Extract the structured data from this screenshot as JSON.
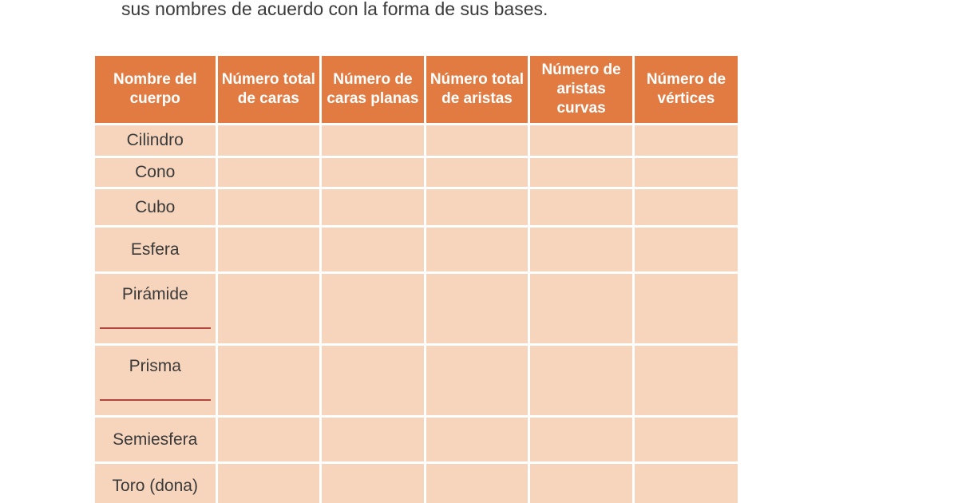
{
  "intro_text": "sus nombres de acuerdo con la forma de sus bases.",
  "table": {
    "headers": [
      "Nombre del cuerpo",
      "Número total de caras",
      "Número de caras planas",
      "Número total de aristas",
      "Número de aristas curvas",
      "Número de vértices"
    ],
    "rows": [
      {
        "name": "Cilindro",
        "cells": [
          "",
          "",
          "",
          "",
          ""
        ]
      },
      {
        "name": "Cono",
        "cells": [
          "",
          "",
          "",
          "",
          ""
        ]
      },
      {
        "name": "Cubo",
        "cells": [
          "",
          "",
          "",
          "",
          ""
        ]
      },
      {
        "name": "Esfera",
        "cells": [
          "",
          "",
          "",
          "",
          ""
        ]
      },
      {
        "name": "Pirámide",
        "cells": [
          "",
          "",
          "",
          "",
          ""
        ]
      },
      {
        "name": "Prisma",
        "cells": [
          "",
          "",
          "",
          "",
          ""
        ]
      },
      {
        "name": "Semiesfera",
        "cells": [
          "",
          "",
          "",
          "",
          ""
        ]
      },
      {
        "name": "Toro (dona)",
        "cells": [
          "",
          "",
          "",
          "",
          ""
        ]
      }
    ]
  },
  "colors": {
    "header_bg": "#e27b42",
    "cell_bg": "#f7d5bd",
    "underline": "#b2453a",
    "text": "#3a3a3a"
  }
}
